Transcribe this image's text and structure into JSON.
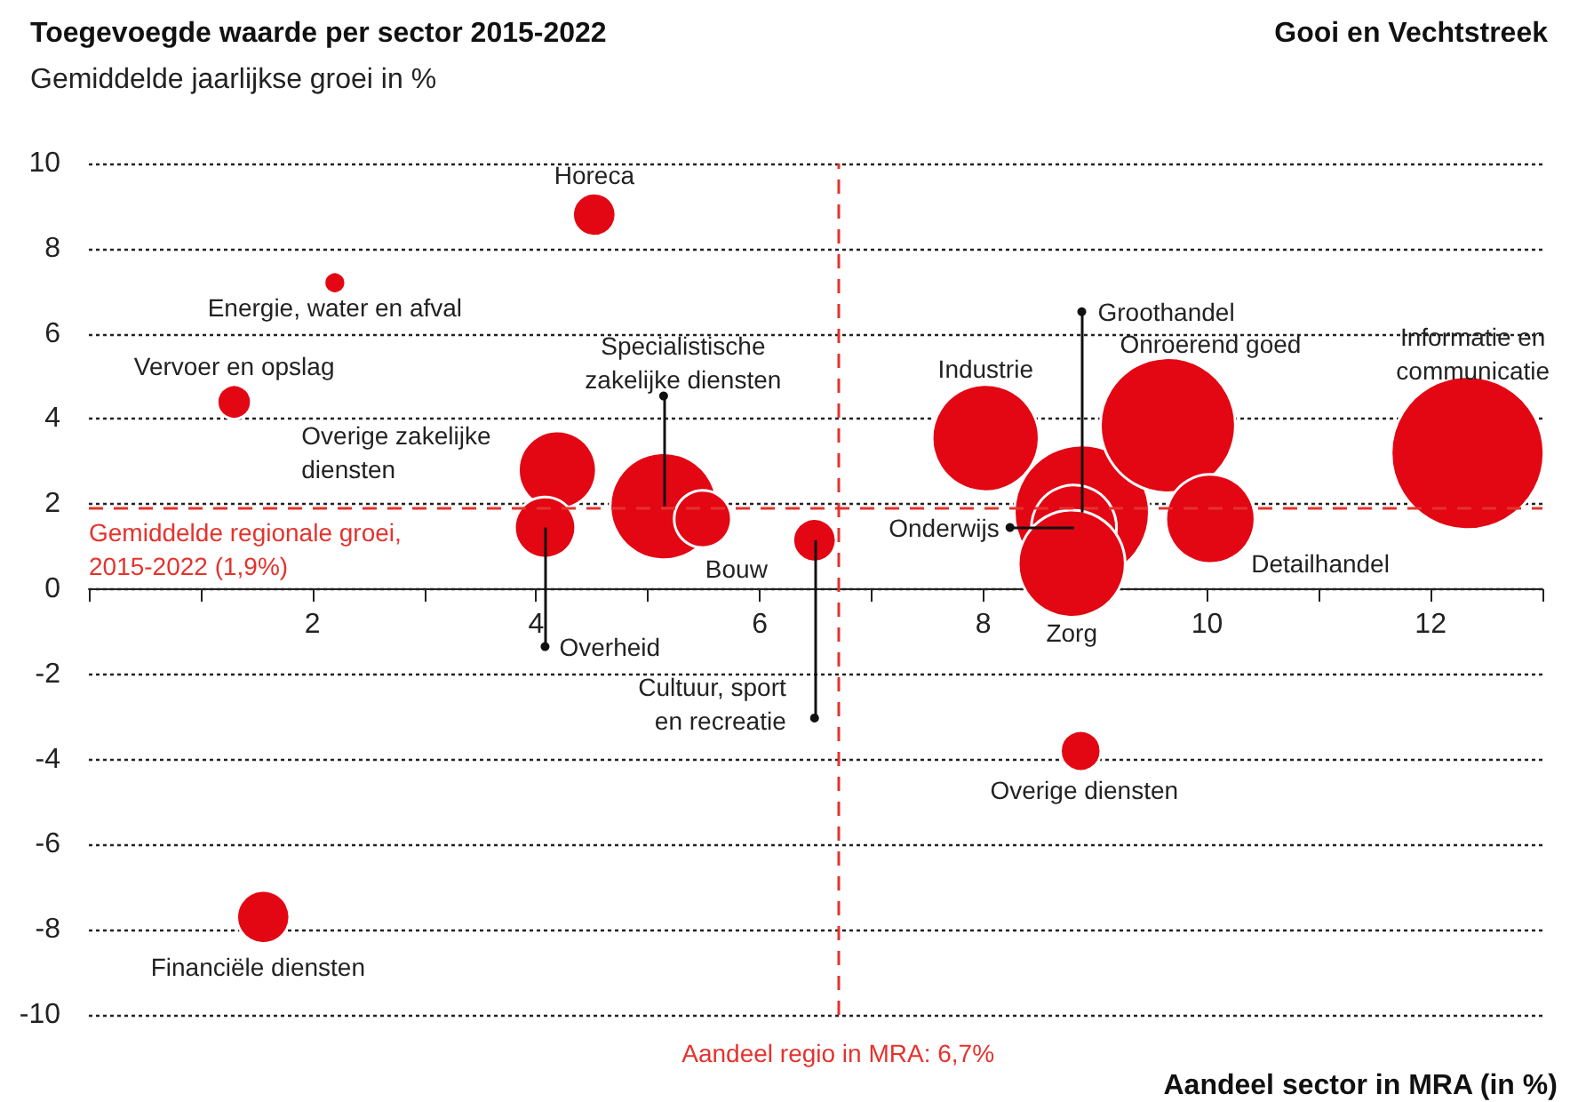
{
  "chart_data": {
    "type": "bubble",
    "title": "Toegevoegde waarde per sector 2015-2022",
    "subtitle": "Gemiddelde jaarlijkse groei in %",
    "xlabel": "Aandeel sector in MRA (in %)",
    "annotations": [
      "Gooi en Vechtstreek",
      {
        "text": "Horeca",
        "x": 4.52,
        "y": 8.8
      },
      {
        "text": "Energie, water en afval",
        "x": 2.2,
        "y": 7.2
      },
      {
        "text": "Vervoer en opslag",
        "x": 1.3,
        "y": 4.4
      },
      {
        "text": "Overige zakelijke\ndiensten",
        "x": 4.19,
        "y": 2.8
      },
      {
        "text": "Overheid",
        "x": 4.08,
        "y": 1.45
      },
      {
        "text": "Specialistische\nzakelijke diensten",
        "x": 5.14,
        "y": 1.95
      },
      {
        "text": "Bouw",
        "x": 5.49,
        "y": 1.65
      },
      {
        "text": "Cultuur, sport\nen recreatie",
        "x": 6.49,
        "y": 1.15
      },
      {
        "text": "Industrie",
        "x": 8.02,
        "y": 3.55
      },
      {
        "text": "Groothandel",
        "x": 8.88,
        "y": 1.8
      },
      {
        "text": "Onroerend goed",
        "x": 9.65,
        "y": 3.85
      },
      {
        "text": "Detailhandel",
        "x": 10.03,
        "y": 1.65
      },
      {
        "text": "Onderwijs",
        "x": 8.81,
        "y": 1.45
      },
      {
        "text": "Zorg",
        "x": 8.79,
        "y": 0.6
      },
      {
        "text": "Informatie en\ncommunicatie",
        "x": 12.33,
        "y": 3.2
      },
      {
        "text": "Overige diensten",
        "x": 8.87,
        "y": -3.8
      },
      {
        "text": "Financiële diensten",
        "x": 1.56,
        "y": -7.7
      }
    ],
    "x": [
      4.52,
      2.2,
      1.3,
      4.19,
      4.08,
      5.14,
      5.49,
      6.49,
      8.02,
      8.88,
      9.65,
      10.03,
      8.81,
      8.79,
      12.33,
      8.87,
      1.56
    ],
    "values": [
      8.8,
      7.2,
      4.4,
      2.8,
      1.45,
      1.95,
      1.65,
      1.15,
      3.55,
      1.8,
      3.85,
      1.65,
      1.45,
      0.6,
      3.2,
      -3.8,
      -7.7
    ],
    "sizes": [
      0.08,
      0.02,
      0.05,
      0.26,
      0.16,
      0.49,
      0.14,
      0.08,
      0.49,
      0.78,
      0.78,
      0.34,
      0.31,
      0.49,
      1,
      0.07,
      0.12
    ],
    "color": "#e30613",
    "xlim": [
      0,
      13
    ],
    "xticks": [
      {
        "value": 0,
        "label": null
      },
      {
        "value": 1,
        "label": null
      },
      2,
      {
        "value": 3,
        "label": null
      },
      4,
      {
        "value": 5,
        "label": null
      },
      6,
      {
        "value": 7,
        "label": null
      },
      8,
      {
        "value": 9,
        "label": null
      },
      10,
      {
        "value": 11,
        "label": null
      },
      12,
      {
        "value": 13,
        "label": null
      }
    ],
    "ylim": [
      -10,
      10
    ],
    "yticks": [
      -10,
      -8,
      -6,
      -4,
      -2,
      0,
      2,
      4,
      6,
      8,
      10
    ],
    "grid": "y",
    "ref_lines": [
      {
        "axis": "y",
        "value": 1.9,
        "label": "Gemiddelde regionale groei,\n2015-2022 (1,9%)",
        "color": "#e5322d",
        "line_style": "dashed"
      },
      {
        "axis": "x",
        "value": 6.7,
        "label": "Aandeel regio in MRA: 6,7%",
        "color": "#e5322d",
        "line_style": "dashed"
      }
    ]
  }
}
